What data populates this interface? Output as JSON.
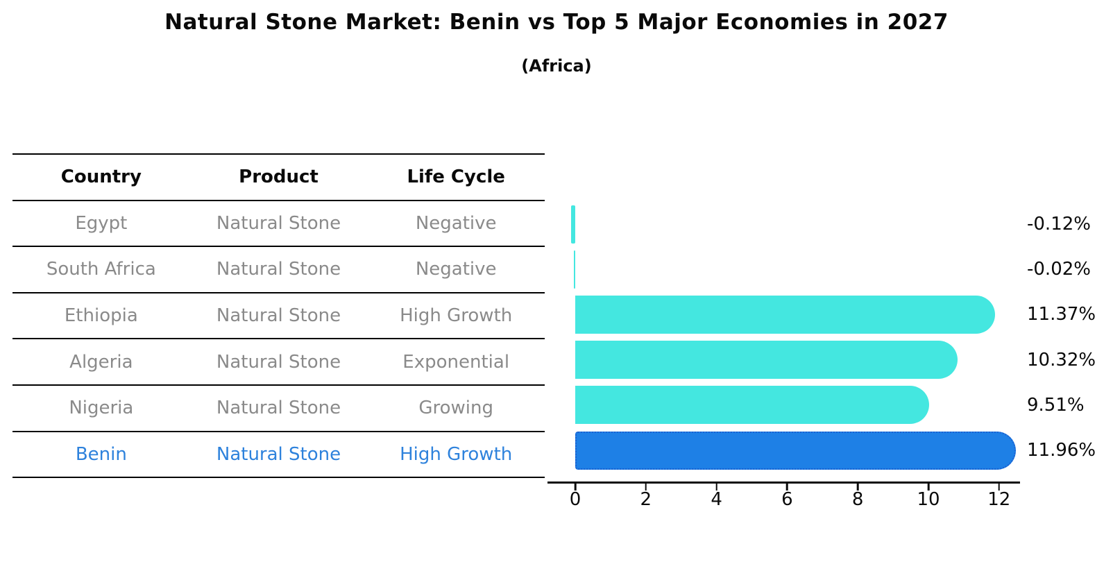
{
  "title": "Natural Stone Market: Benin vs Top 5 Major Economies in 2027",
  "subtitle": "(Africa)",
  "table": {
    "columns": [
      "Country",
      "Product",
      "Life Cycle"
    ],
    "rows": [
      {
        "country": "Egypt",
        "product": "Natural Stone",
        "life_cycle": "Negative"
      },
      {
        "country": "South Africa",
        "product": "Natural Stone",
        "life_cycle": "Negative"
      },
      {
        "country": "Ethiopia",
        "product": "Natural Stone",
        "life_cycle": "High Growth"
      },
      {
        "country": "Algeria",
        "product": "Natural Stone",
        "life_cycle": "Exponential"
      },
      {
        "country": "Nigeria",
        "product": "Natural Stone",
        "life_cycle": "Growing"
      },
      {
        "country": "Benin",
        "product": "Natural Stone",
        "life_cycle": "High Growth"
      }
    ]
  },
  "chart_data": {
    "type": "bar",
    "orientation": "horizontal",
    "title": "Natural Stone Market: Benin vs Top 5 Major Economies in 2027 (Africa)",
    "categories": [
      "Egypt",
      "South Africa",
      "Ethiopia",
      "Algeria",
      "Nigeria",
      "Benin"
    ],
    "values": [
      -0.12,
      -0.02,
      11.37,
      10.32,
      9.51,
      11.96
    ],
    "value_labels": [
      "-0.12%",
      "-0.02%",
      "11.37%",
      "10.32%",
      "9.51%",
      "11.96%"
    ],
    "x_ticks": [
      "0",
      "2",
      "4",
      "6",
      "8",
      "10",
      "12"
    ],
    "x_tick_values": [
      0,
      2,
      4,
      6,
      8,
      10,
      12
    ],
    "xlim": [
      -0.8,
      12.6
    ],
    "grid": false,
    "legend": false,
    "highlight_index": 5,
    "colors": {
      "default_bar": "#44E7E0",
      "highlight_bar": "#1E80E6",
      "highlight_border": "#1A5FD0",
      "row_text": "#8a8a8a",
      "highlight_text": "#2E82DC",
      "text": "#0a0a0a"
    }
  }
}
